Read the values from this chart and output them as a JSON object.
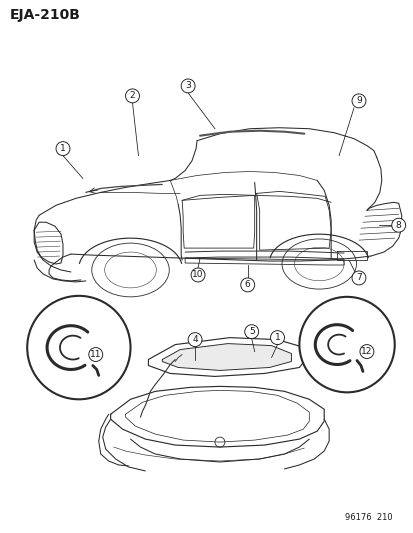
{
  "title": "EJA-210B",
  "footer": "96176  210",
  "bg_color": "#ffffff",
  "text_color": "#1a1a1a",
  "title_fontsize": 10,
  "footer_fontsize": 6,
  "label_fontsize": 6.5,
  "line_color": "#2a2a2a"
}
